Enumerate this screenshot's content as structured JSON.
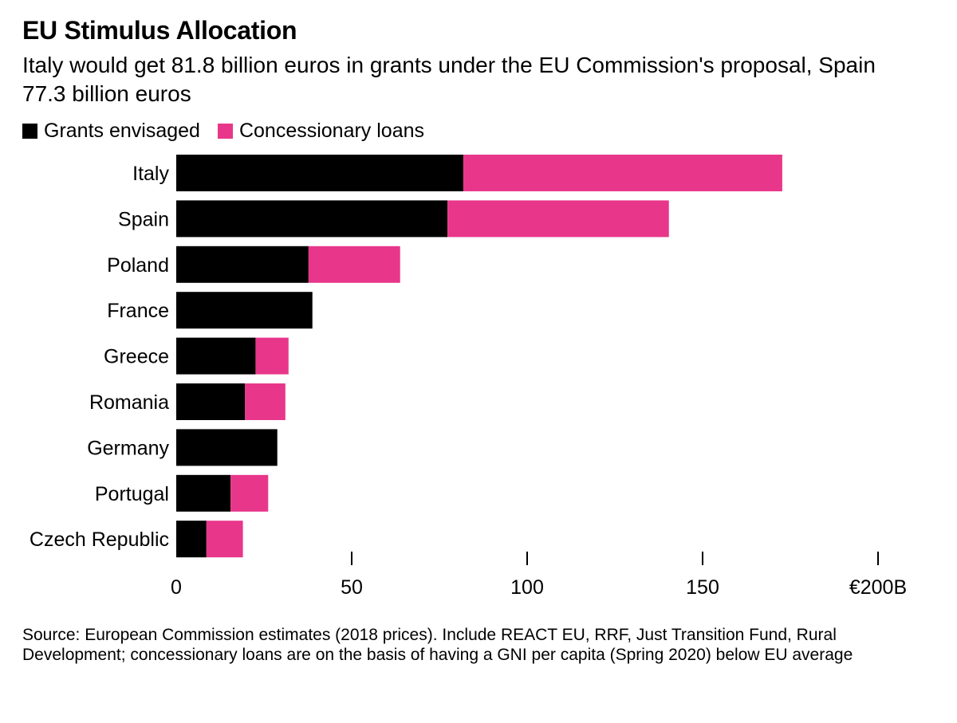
{
  "title": "EU Stimulus Allocation",
  "subtitle": "Italy would get 81.8 billion euros in grants under the EU Commission's proposal, Spain 77.3 billion euros",
  "colors": {
    "grants": "#000000",
    "loans": "#e8378a"
  },
  "chart_data": {
    "type": "bar",
    "orientation": "horizontal",
    "stacked": true,
    "categories": [
      "Italy",
      "Spain",
      "Poland",
      "France",
      "Greece",
      "Romania",
      "Germany",
      "Portugal",
      "Czech Republic"
    ],
    "series": [
      {
        "name": "Grants envisaged",
        "values": [
          81.8,
          77.3,
          37.7,
          38.8,
          22.6,
          19.6,
          28.8,
          15.5,
          8.6
        ]
      },
      {
        "name": "Concessionary loans",
        "values": [
          90.9,
          63.1,
          26.1,
          0,
          9.4,
          11.5,
          0,
          10.7,
          10.4
        ]
      }
    ],
    "xlim": [
      0,
      200
    ],
    "xticks": [
      0,
      50,
      100,
      150,
      200
    ],
    "xtick_labels": [
      "0",
      "50",
      "100",
      "150",
      "€200B"
    ],
    "legend_position": "top-left"
  },
  "source": "Source: European Commission estimates (2018 prices). Include REACT EU, RRF, Just Transition Fund, Rural Development; concessionary loans are on the basis of having a GNI per capita (Spring 2020) below EU average"
}
